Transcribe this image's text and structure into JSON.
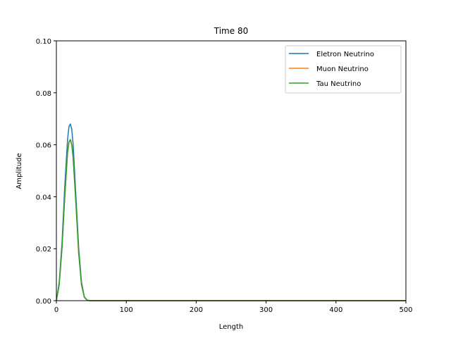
{
  "chart_data": {
    "type": "line",
    "title": "Time 80",
    "xlabel": "Length",
    "ylabel": "Amplitude",
    "xlim": [
      0,
      500
    ],
    "ylim": [
      0,
      0.1
    ],
    "xticks": [
      0,
      100,
      200,
      300,
      400,
      500
    ],
    "xtick_labels": [
      "0",
      "100",
      "200",
      "300",
      "400",
      "500"
    ],
    "yticks": [
      0,
      0.02,
      0.04,
      0.06,
      0.08,
      0.1
    ],
    "ytick_labels": [
      "0.00",
      "0.02",
      "0.04",
      "0.06",
      "0.08",
      "0.10"
    ],
    "grid": false,
    "legend_position": "top-right",
    "x": [
      0,
      4,
      8,
      12,
      16,
      18,
      20,
      22,
      24,
      28,
      32,
      36,
      40,
      44,
      48,
      60,
      100,
      200,
      300,
      400,
      500
    ],
    "series": [
      {
        "name": "Eletron Neutrino",
        "color": "#1f77b4",
        "values": [
          0.0,
          0.007,
          0.022,
          0.044,
          0.062,
          0.067,
          0.068,
          0.066,
          0.06,
          0.04,
          0.02,
          0.007,
          0.0015,
          0.0002,
          0.0,
          0.0,
          0.0,
          0.0,
          0.0,
          0.0,
          0.0
        ]
      },
      {
        "name": "Muon Neutrino",
        "color": "#ff7f0e",
        "values": [
          0.0,
          0.006,
          0.02,
          0.04,
          0.057,
          0.061,
          0.062,
          0.06,
          0.055,
          0.037,
          0.018,
          0.006,
          0.0013,
          0.0002,
          0.0,
          0.0,
          0.0,
          0.0,
          0.0,
          0.0,
          0.0
        ]
      },
      {
        "name": "Tau Neutrino",
        "color": "#2ca02c",
        "values": [
          0.0,
          0.006,
          0.02,
          0.04,
          0.057,
          0.061,
          0.062,
          0.06,
          0.055,
          0.037,
          0.018,
          0.006,
          0.0013,
          0.0002,
          0.0,
          0.0,
          0.0,
          0.0,
          0.0,
          0.0,
          0.0
        ]
      }
    ]
  }
}
